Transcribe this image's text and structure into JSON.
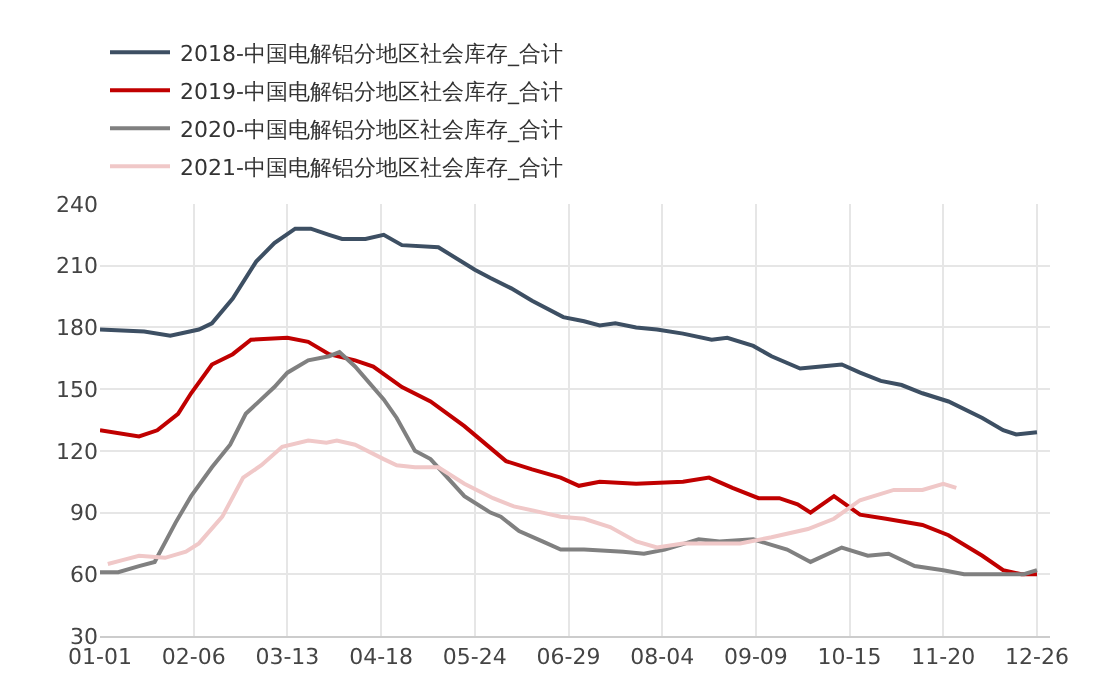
{
  "chart_data": {
    "type": "line",
    "legend": "top",
    "grid": true,
    "marker": "none",
    "line_style": "solid",
    "ylim": [
      30,
      240
    ],
    "yticks": [
      30,
      60,
      90,
      120,
      150,
      180,
      210,
      240
    ],
    "xlim": [
      "--01-01",
      "--12-31"
    ],
    "xticks": [
      {
        "value": "--01-01",
        "label": "01-01"
      },
      {
        "value": "--02-06",
        "label": "02-06"
      },
      {
        "value": "--03-13",
        "label": "03-13"
      },
      {
        "value": "--04-18",
        "label": "04-18"
      },
      {
        "value": "--05-24",
        "label": "05-24"
      },
      {
        "value": "--06-29",
        "label": "06-29"
      },
      {
        "value": "--08-04",
        "label": "08-04"
      },
      {
        "value": "--09-09",
        "label": "09-09"
      },
      {
        "value": "--10-15",
        "label": "10-15"
      },
      {
        "value": "--11-20",
        "label": "11-20"
      },
      {
        "value": "--12-26",
        "label": "12-26"
      }
    ],
    "series": [
      {
        "name": "2018-中国电解铝分地区社会库存_合计",
        "color": "#3d4f63",
        "x": [
          "--01-01",
          "--01-18",
          "--01-28",
          "--02-08",
          "--02-13",
          "--02-21",
          "--03-01",
          "--03-08",
          "--03-16",
          "--03-22",
          "--03-29",
          "--04-03",
          "--04-12",
          "--04-19",
          "--04-26",
          "--05-10",
          "--05-24",
          "--05-30",
          "--06-07",
          "--06-15",
          "--06-27",
          "--07-05",
          "--07-11",
          "--07-17",
          "--07-25",
          "--08-02",
          "--08-12",
          "--08-23",
          "--08-29",
          "--09-08",
          "--09-15",
          "--09-26",
          "--10-04",
          "--10-12",
          "--10-19",
          "--10-27",
          "--11-04",
          "--11-12",
          "--11-22",
          "--12-05",
          "--12-13",
          "--12-18",
          "--12-26"
        ],
        "values": [
          179,
          178,
          176,
          179,
          182,
          194,
          212,
          221,
          228,
          228,
          225,
          223,
          223,
          225,
          220,
          219,
          208,
          204,
          199,
          193,
          185,
          183,
          181,
          182,
          180,
          179,
          177,
          174,
          175,
          171,
          166,
          160,
          161,
          162,
          158,
          154,
          152,
          148,
          144,
          136,
          130,
          128,
          129
        ]
      },
      {
        "name": "2019-中国电解铝分地区社会库存_合计",
        "color": "#c00000",
        "x": [
          "--01-01",
          "--01-16",
          "--01-23",
          "--01-31",
          "--02-05",
          "--02-13",
          "--02-21",
          "--02-28",
          "--03-13",
          "--03-21",
          "--03-29",
          "--04-08",
          "--04-15",
          "--04-26",
          "--05-07",
          "--05-20",
          "--06-05",
          "--06-15",
          "--06-26",
          "--07-03",
          "--07-11",
          "--07-25",
          "--08-12",
          "--08-22",
          "--08-31",
          "--09-10",
          "--09-18",
          "--09-25",
          "--09-30",
          "--10-09",
          "--10-19",
          "--10-29",
          "--11-12",
          "--11-22",
          "--12-05",
          "--12-13",
          "--12-20",
          "--12-26"
        ],
        "values": [
          130,
          127,
          130,
          138,
          148,
          162,
          167,
          174,
          175,
          173,
          167,
          164,
          161,
          151,
          144,
          132,
          115,
          111,
          107,
          103,
          105,
          104,
          105,
          107,
          102,
          97,
          97,
          94,
          90,
          98,
          89,
          87,
          84,
          79,
          69,
          62,
          60,
          60
        ]
      },
      {
        "name": "2020-中国电解铝分地区社会库存_合计",
        "color": "#808080",
        "x": [
          "--01-01",
          "--01-08",
          "--01-16",
          "--01-22",
          "--01-30",
          "--02-05",
          "--02-13",
          "--02-20",
          "--02-26",
          "--03-08",
          "--03-13",
          "--03-21",
          "--03-29",
          "--04-02",
          "--04-08",
          "--04-19",
          "--04-24",
          "--05-01",
          "--05-07",
          "--05-20",
          "--05-30",
          "--06-03",
          "--06-10",
          "--06-19",
          "--06-26",
          "--07-05",
          "--07-20",
          "--07-28",
          "--08-05",
          "--08-18",
          "--08-26",
          "--09-08",
          "--09-21",
          "--09-30",
          "--10-12",
          "--10-22",
          "--10-30",
          "--11-09",
          "--11-20",
          "--11-28",
          "--12-05",
          "--12-21",
          "--12-26"
        ],
        "values": [
          61,
          61,
          64,
          66,
          85,
          98,
          112,
          123,
          138,
          151,
          158,
          164,
          166,
          168,
          161,
          145,
          136,
          120,
          116,
          98,
          90,
          88,
          81,
          76,
          72,
          72,
          71,
          70,
          72,
          77,
          76,
          77,
          72,
          66,
          73,
          69,
          70,
          64,
          62,
          60,
          60,
          60,
          62
        ]
      },
      {
        "name": "2021-中国电解铝分地区社会库存_合计",
        "color": "#f0c8c8",
        "x": [
          "--01-04",
          "--01-10",
          "--01-16",
          "--01-26",
          "--02-03",
          "--02-08",
          "--02-17",
          "--02-25",
          "--03-03",
          "--03-11",
          "--03-21",
          "--03-28",
          "--04-01",
          "--04-08",
          "--04-19",
          "--04-24",
          "--05-01",
          "--05-10",
          "--05-20",
          "--05-31",
          "--06-08",
          "--06-19",
          "--06-26",
          "--07-05",
          "--07-15",
          "--07-25",
          "--08-02",
          "--08-12",
          "--09-03",
          "--09-15",
          "--09-29",
          "--10-09",
          "--10-19",
          "--11-01",
          "--11-12",
          "--11-20",
          "--11-25"
        ],
        "values": [
          65,
          67,
          69,
          68,
          71,
          75,
          88,
          107,
          113,
          122,
          125,
          124,
          125,
          123,
          116,
          113,
          112,
          112,
          104,
          97,
          93,
          90,
          88,
          87,
          83,
          76,
          73,
          75,
          75,
          78,
          82,
          87,
          96,
          101,
          101,
          104,
          102
        ]
      }
    ]
  }
}
